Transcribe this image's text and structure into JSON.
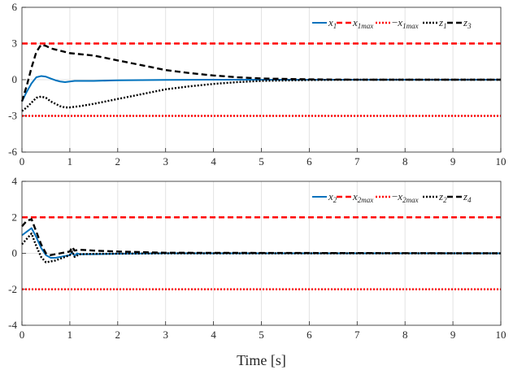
{
  "chart_data": [
    {
      "type": "line",
      "panel": "top",
      "xlim": [
        0,
        10
      ],
      "ylim": [
        -6,
        6
      ],
      "xticks": [
        "0",
        "1",
        "2",
        "3",
        "4",
        "5",
        "6",
        "7",
        "8",
        "9",
        "10"
      ],
      "yticks": [
        "-6",
        "-3",
        "0",
        "3",
        "6"
      ],
      "grid": true,
      "legend_placement": "top-right",
      "legend": [
        {
          "main": "x",
          "sub": "1",
          "prefix": "",
          "series": 0
        },
        {
          "main": "x",
          "sub": "1max",
          "prefix": "",
          "series": 1
        },
        {
          "main": "x",
          "sub": "1max",
          "prefix": "−",
          "series": 2
        },
        {
          "main": "z",
          "sub": "1",
          "prefix": "",
          "series": 3
        },
        {
          "main": "z",
          "sub": "3",
          "prefix": "",
          "series": 4
        }
      ],
      "series": [
        {
          "name": "x1",
          "color": "#0072BD",
          "style": "solid",
          "x": [
            0,
            0.1,
            0.2,
            0.3,
            0.4,
            0.5,
            0.6,
            0.7,
            0.8,
            0.9,
            1.0,
            1.1,
            1.5,
            2,
            3,
            4,
            5,
            6,
            7,
            8,
            9,
            10
          ],
          "y": [
            -1.8,
            -1.0,
            -0.3,
            0.2,
            0.3,
            0.25,
            0.1,
            -0.05,
            -0.15,
            -0.2,
            -0.15,
            -0.1,
            -0.1,
            -0.05,
            -0.02,
            0,
            0,
            0,
            0,
            0,
            0,
            0
          ]
        },
        {
          "name": "x1max",
          "color": "#FF0000",
          "style": "dashed",
          "x": [
            0,
            10
          ],
          "y": [
            3,
            3
          ]
        },
        {
          "name": "-x1max",
          "color": "#FF0000",
          "style": "dotted",
          "x": [
            0,
            10
          ],
          "y": [
            -3,
            -3
          ]
        },
        {
          "name": "z1",
          "color": "#000000",
          "style": "dotted",
          "x": [
            0,
            0.1,
            0.2,
            0.3,
            0.4,
            0.5,
            0.6,
            0.7,
            0.8,
            0.9,
            1.0,
            1.2,
            1.5,
            2,
            2.5,
            3,
            3.5,
            4,
            4.5,
            5,
            6,
            7,
            8,
            10
          ],
          "y": [
            -2.6,
            -2.3,
            -1.9,
            -1.5,
            -1.4,
            -1.5,
            -1.8,
            -2.0,
            -2.2,
            -2.3,
            -2.3,
            -2.2,
            -2.0,
            -1.6,
            -1.2,
            -0.8,
            -0.55,
            -0.35,
            -0.2,
            -0.1,
            -0.03,
            0,
            0,
            0
          ]
        },
        {
          "name": "z3",
          "color": "#000000",
          "style": "dashed",
          "x": [
            0,
            0.1,
            0.2,
            0.3,
            0.4,
            0.5,
            0.6,
            0.7,
            0.8,
            0.9,
            1.0,
            1.5,
            2,
            2.5,
            3,
            3.5,
            4,
            4.5,
            5,
            6,
            7,
            8,
            10
          ],
          "y": [
            -1.8,
            -0.5,
            1.0,
            2.3,
            2.9,
            2.8,
            2.6,
            2.5,
            2.4,
            2.3,
            2.2,
            2.0,
            1.6,
            1.2,
            0.8,
            0.55,
            0.35,
            0.2,
            0.1,
            0.03,
            0,
            0,
            0
          ]
        }
      ]
    },
    {
      "type": "line",
      "panel": "bottom",
      "xlim": [
        0,
        10
      ],
      "ylim": [
        -4,
        4
      ],
      "xticks": [
        "0",
        "1",
        "2",
        "3",
        "4",
        "5",
        "6",
        "7",
        "8",
        "9",
        "10"
      ],
      "yticks": [
        "-4",
        "-2",
        "0",
        "2",
        "4"
      ],
      "grid": true,
      "legend_placement": "top-right",
      "xlabel": "Time [s]",
      "legend": [
        {
          "main": "x",
          "sub": "2",
          "prefix": "",
          "series": 0
        },
        {
          "main": "x",
          "sub": "2max",
          "prefix": "",
          "series": 1
        },
        {
          "main": "x",
          "sub": "2max",
          "prefix": "−",
          "series": 2
        },
        {
          "main": "z",
          "sub": "2",
          "prefix": "",
          "series": 3
        },
        {
          "main": "z",
          "sub": "4",
          "prefix": "",
          "series": 4
        }
      ],
      "series": [
        {
          "name": "x2",
          "color": "#0072BD",
          "style": "solid",
          "x": [
            0,
            0.1,
            0.2,
            0.3,
            0.4,
            0.5,
            0.6,
            0.7,
            0.8,
            0.9,
            1.0,
            1.05,
            1.1,
            1.15,
            1.2,
            1.5,
            2,
            3,
            4,
            10
          ],
          "y": [
            1.0,
            1.2,
            1.4,
            0.9,
            0.3,
            -0.1,
            -0.25,
            -0.25,
            -0.2,
            -0.15,
            -0.1,
            0.05,
            -0.15,
            0.0,
            -0.05,
            -0.05,
            -0.02,
            0,
            0,
            0
          ]
        },
        {
          "name": "x2max",
          "color": "#FF0000",
          "style": "dashed",
          "x": [
            0,
            10
          ],
          "y": [
            2,
            2
          ]
        },
        {
          "name": "-x2max",
          "color": "#FF0000",
          "style": "dotted",
          "x": [
            0,
            10
          ],
          "y": [
            -2,
            -2
          ]
        },
        {
          "name": "z2",
          "color": "#000000",
          "style": "dotted",
          "x": [
            0,
            0.1,
            0.2,
            0.3,
            0.4,
            0.5,
            0.6,
            0.7,
            0.8,
            0.9,
            1.0,
            1.05,
            1.1,
            1.2,
            1.5,
            2,
            3,
            10
          ],
          "y": [
            0.5,
            0.8,
            1.1,
            0.4,
            -0.2,
            -0.5,
            -0.45,
            -0.4,
            -0.3,
            -0.2,
            -0.1,
            0.1,
            -0.2,
            -0.05,
            -0.03,
            -0.02,
            0,
            0
          ]
        },
        {
          "name": "z4",
          "color": "#000000",
          "style": "dashed",
          "x": [
            0,
            0.1,
            0.2,
            0.3,
            0.4,
            0.5,
            0.6,
            0.7,
            0.8,
            0.9,
            1.0,
            1.05,
            1.1,
            1.2,
            1.5,
            2,
            3,
            10
          ],
          "y": [
            1.5,
            1.8,
            1.9,
            1.2,
            0.5,
            0.0,
            -0.1,
            -0.05,
            0.0,
            0.05,
            0.1,
            0.35,
            0.15,
            0.2,
            0.15,
            0.1,
            0.03,
            0
          ]
        }
      ]
    }
  ]
}
